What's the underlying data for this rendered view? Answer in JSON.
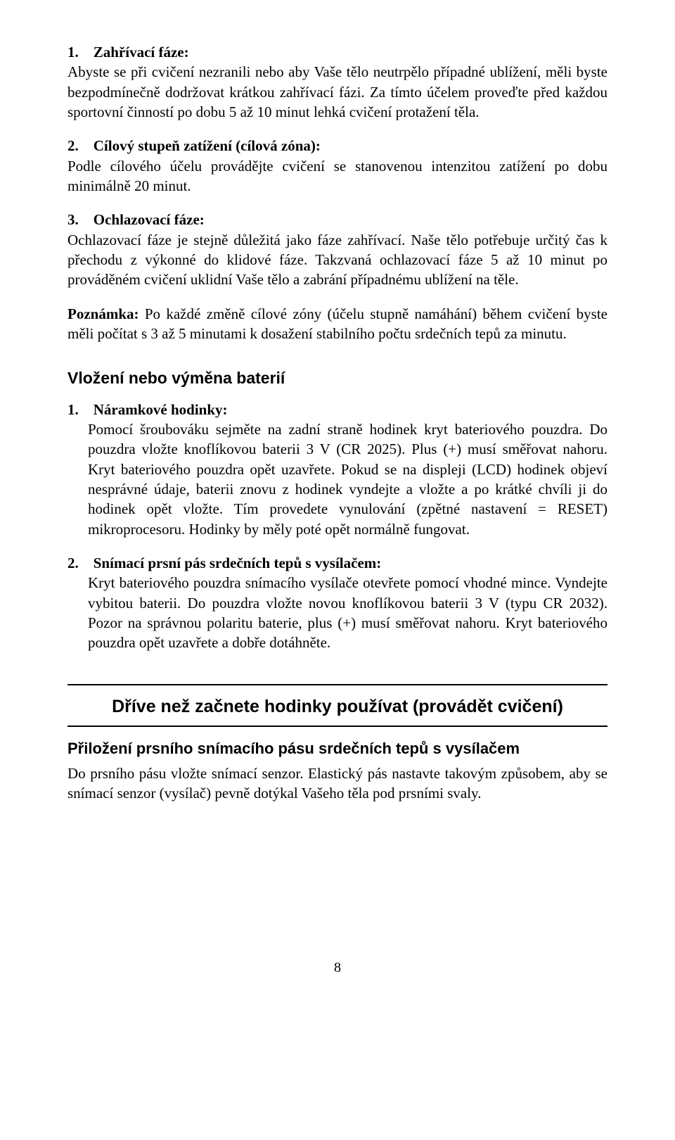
{
  "list1": [
    {
      "num": "1.",
      "title": "Zahřívací fáze:",
      "body": "Abyste se při cvičení nezranili nebo aby Vaše tělo neutrpělo případné ublížení, měli byste bezpodmínečně dodržovat krátkou zahřívací fázi. Za tímto účelem proveďte před každou sportovní činností po dobu 5 až 10 minut lehká cvičení protažení těla."
    },
    {
      "num": "2.",
      "title": "Cílový stupeň zatížení (cílová zóna):",
      "body": "Podle cílového účelu provádějte cvičení se stanovenou intenzitou zatížení po dobu minimálně 20 minut."
    },
    {
      "num": "3.",
      "title": "Ochlazovací fáze:",
      "body": "Ochlazovací fáze je stejně důležitá jako fáze zahřívací. Naše tělo potřebuje určitý čas k přechodu z výkonné do klidové fáze. Takzvaná ochlazovací fáze 5 až 10 minut po prováděném cvičení uklidní Vaše tělo a zabrání případnému ublížení na těle."
    }
  ],
  "note": {
    "label": "Poznámka:",
    "text": "Po každé změně cílové zóny (účelu stupně namáhání) během cvičení byste měli počítat s 3 až 5 minutami k dosažení stabilního počtu srdečních tepů za minutu."
  },
  "section2": {
    "heading": "Vložení nebo výměna baterií",
    "items": [
      {
        "num": "1.",
        "title": "Náramkové hodinky:",
        "body": "Pomocí šroubováku sejměte na zadní straně hodinek kryt bateriového pouzdra. Do pouzdra vložte knoflíkovou baterii 3 V (CR 2025). Plus (+) musí směřovat nahoru. Kryt bateriového pouzdra opět uzavřete. Pokud se na displeji (LCD) hodinek objeví nesprávné údaje, baterii znovu z hodinek vyndejte a vložte a po krátké chvíli ji do hodinek opět vložte. Tím provedete vynulování (zpětné nastavení = RESET) mikroprocesoru. Hodinky by měly poté opět normálně fungovat."
      },
      {
        "num": "2.",
        "title": "Snímací prsní pás srdečních tepů s vysílačem:",
        "body": "Kryt bateriového pouzdra snímacího vysílače otevřete pomocí vhodné mince. Vyndejte vybitou baterii. Do pouzdra vložte novou knoflíkovou baterii 3 V (typu CR 2032). Pozor na správnou polaritu baterie, plus (+) musí směřovat nahoru. Kryt bateriového pouzdra opět uzavřete a dobře dotáhněte."
      }
    ]
  },
  "section3": {
    "heading": "Dříve než začnete hodinky používat (provádět cvičení)",
    "subheading": "Přiložení prsního snímacího pásu srdečních tepů s vysílačem",
    "body": "Do prsního pásu vložte snímací senzor. Elastický pás nastavte takovým způsobem, aby se snímací senzor (vysílač) pevně dotýkal Vašeho těla pod prsními svaly."
  },
  "pagenum": "8"
}
